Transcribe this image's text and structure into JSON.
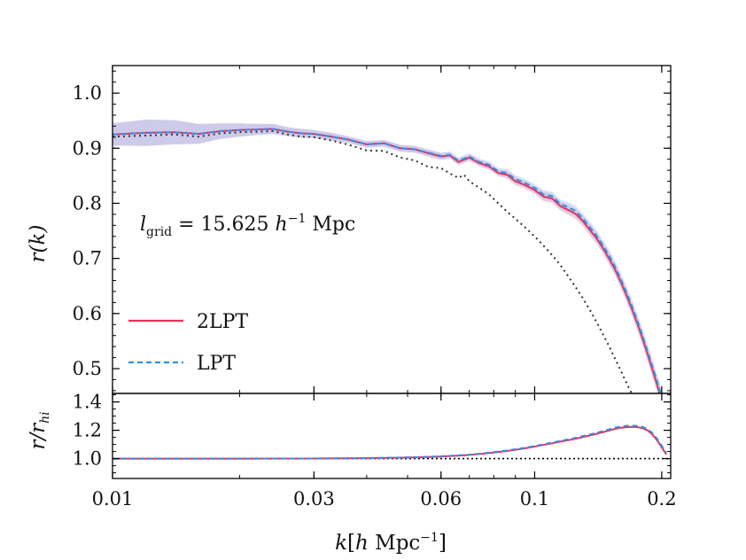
{
  "chart_data": {
    "type": "line",
    "xscale": "log",
    "xlim": [
      0.01,
      0.21
    ],
    "xlabel": "k[h Mpc⁻¹]",
    "xticks": [
      0.01,
      0.03,
      0.06,
      0.1,
      0.2
    ],
    "xtick_labels": [
      "0.01",
      "0.03",
      "0.06",
      "0.1",
      "0.2"
    ],
    "legend_position": "lower-left",
    "annotation": "l_grid = 15.625 h⁻¹ Mpc",
    "colors": {
      "twolpt": "#e8325a",
      "lpt": "#2f8fe8",
      "reference": "#333333",
      "band_twolpt": "#d9a6c8",
      "band_lpt": "#b7c6f0"
    },
    "top_panel": {
      "ylabel": "r(k)",
      "ylim": [
        0.455,
        1.05
      ],
      "yticks": [
        0.5,
        0.6,
        0.7,
        0.8,
        0.9,
        1.0
      ],
      "ytick_labels": [
        "0.5",
        "0.6",
        "0.7",
        "0.8",
        "0.9",
        "1.0"
      ],
      "series": [
        {
          "name": "2LPT",
          "style": "solid",
          "x": [
            0.01,
            0.012,
            0.014,
            0.016,
            0.018,
            0.02,
            0.022,
            0.024,
            0.026,
            0.028,
            0.03,
            0.033,
            0.036,
            0.04,
            0.044,
            0.048,
            0.052,
            0.056,
            0.06,
            0.063,
            0.066,
            0.07,
            0.074,
            0.078,
            0.082,
            0.086,
            0.09,
            0.095,
            0.1,
            0.105,
            0.11,
            0.115,
            0.12,
            0.125,
            0.13,
            0.135,
            0.14,
            0.145,
            0.15,
            0.155,
            0.16,
            0.165,
            0.17,
            0.175,
            0.18,
            0.185,
            0.19,
            0.195,
            0.2,
            0.205
          ],
          "y": [
            0.925,
            0.928,
            0.929,
            0.926,
            0.931,
            0.933,
            0.934,
            0.935,
            0.93,
            0.927,
            0.926,
            0.921,
            0.916,
            0.907,
            0.909,
            0.9,
            0.898,
            0.891,
            0.885,
            0.887,
            0.875,
            0.883,
            0.873,
            0.867,
            0.855,
            0.852,
            0.84,
            0.833,
            0.824,
            0.812,
            0.809,
            0.795,
            0.788,
            0.781,
            0.768,
            0.752,
            0.737,
            0.719,
            0.7,
            0.68,
            0.657,
            0.633,
            0.608,
            0.582,
            0.555,
            0.527,
            0.499,
            0.471,
            0.443,
            0.418
          ],
          "band": [
            0.02,
            0.024,
            0.022,
            0.018,
            0.014,
            0.012,
            0.01,
            0.009,
            0.008,
            0.008,
            0.007,
            0.007,
            0.006,
            0.006,
            0.006,
            0.006,
            0.006,
            0.006,
            0.006,
            0.006,
            0.006,
            0.006,
            0.006,
            0.006,
            0.006,
            0.007,
            0.007,
            0.007,
            0.007,
            0.008,
            0.008,
            0.008,
            0.009,
            0.009,
            0.009,
            0.01,
            0.01,
            0.01,
            0.011,
            0.011,
            0.011,
            0.012,
            0.012,
            0.012,
            0.013,
            0.013,
            0.013,
            0.014,
            0.014,
            0.014
          ]
        },
        {
          "name": "LPT",
          "style": "dashed",
          "x": [
            0.01,
            0.012,
            0.014,
            0.016,
            0.018,
            0.02,
            0.022,
            0.024,
            0.026,
            0.028,
            0.03,
            0.033,
            0.036,
            0.04,
            0.044,
            0.048,
            0.052,
            0.056,
            0.06,
            0.063,
            0.066,
            0.07,
            0.074,
            0.078,
            0.082,
            0.086,
            0.09,
            0.095,
            0.1,
            0.105,
            0.11,
            0.115,
            0.12,
            0.125,
            0.13,
            0.135,
            0.14,
            0.145,
            0.15,
            0.155,
            0.16,
            0.165,
            0.17,
            0.175,
            0.18,
            0.185,
            0.19,
            0.195,
            0.2,
            0.205
          ],
          "y": [
            0.925,
            0.928,
            0.929,
            0.926,
            0.931,
            0.933,
            0.934,
            0.935,
            0.93,
            0.927,
            0.926,
            0.921,
            0.916,
            0.907,
            0.909,
            0.9,
            0.898,
            0.892,
            0.886,
            0.888,
            0.877,
            0.885,
            0.875,
            0.87,
            0.858,
            0.855,
            0.844,
            0.837,
            0.828,
            0.816,
            0.813,
            0.799,
            0.793,
            0.786,
            0.773,
            0.757,
            0.742,
            0.724,
            0.705,
            0.685,
            0.662,
            0.638,
            0.613,
            0.587,
            0.56,
            0.532,
            0.504,
            0.476,
            0.448,
            0.422
          ],
          "band": [
            0.02,
            0.024,
            0.022,
            0.018,
            0.014,
            0.012,
            0.01,
            0.009,
            0.008,
            0.008,
            0.007,
            0.007,
            0.006,
            0.006,
            0.006,
            0.006,
            0.006,
            0.006,
            0.006,
            0.006,
            0.006,
            0.006,
            0.006,
            0.006,
            0.006,
            0.007,
            0.007,
            0.007,
            0.007,
            0.008,
            0.008,
            0.008,
            0.009,
            0.009,
            0.009,
            0.01,
            0.01,
            0.01,
            0.011,
            0.011,
            0.011,
            0.012,
            0.012,
            0.012,
            0.013,
            0.013,
            0.013,
            0.014,
            0.014,
            0.014
          ]
        },
        {
          "style": "dotted",
          "x": [
            0.01,
            0.012,
            0.014,
            0.016,
            0.018,
            0.02,
            0.022,
            0.024,
            0.026,
            0.028,
            0.03,
            0.033,
            0.036,
            0.04,
            0.044,
            0.048,
            0.052,
            0.056,
            0.06,
            0.063,
            0.066,
            0.068,
            0.07,
            0.074,
            0.078,
            0.082,
            0.086,
            0.09,
            0.095,
            0.1,
            0.105,
            0.11,
            0.115,
            0.12,
            0.125,
            0.13,
            0.135,
            0.14,
            0.145,
            0.15,
            0.155,
            0.16,
            0.165,
            0.17,
            0.175,
            0.18,
            0.185
          ],
          "y": [
            0.921,
            0.923,
            0.925,
            0.921,
            0.927,
            0.929,
            0.93,
            0.931,
            0.925,
            0.921,
            0.92,
            0.914,
            0.907,
            0.896,
            0.895,
            0.883,
            0.878,
            0.866,
            0.864,
            0.854,
            0.846,
            0.852,
            0.84,
            0.828,
            0.816,
            0.8,
            0.785,
            0.772,
            0.756,
            0.74,
            0.723,
            0.706,
            0.688,
            0.668,
            0.648,
            0.628,
            0.607,
            0.585,
            0.563,
            0.541,
            0.518,
            0.496,
            0.474,
            0.454,
            0.436,
            0.418,
            0.4
          ]
        }
      ]
    },
    "bottom_panel": {
      "ylabel": "r/r_hi",
      "ylim": [
        0.86,
        1.46
      ],
      "yticks": [
        1.0,
        1.2,
        1.4
      ],
      "ytick_labels": [
        "1.0",
        "1.2",
        "1.4"
      ],
      "reference_y": 1.0,
      "series": [
        {
          "name": "2LPT",
          "style": "solid",
          "x": [
            0.01,
            0.02,
            0.03,
            0.035,
            0.04,
            0.045,
            0.05,
            0.055,
            0.06,
            0.065,
            0.07,
            0.075,
            0.08,
            0.085,
            0.09,
            0.095,
            0.1,
            0.105,
            0.11,
            0.115,
            0.12,
            0.125,
            0.13,
            0.135,
            0.14,
            0.145,
            0.15,
            0.155,
            0.16,
            0.165,
            0.17,
            0.175,
            0.18,
            0.185,
            0.19,
            0.195,
            0.2,
            0.205
          ],
          "y": [
            1.0,
            1.0,
            1.001,
            1.002,
            1.003,
            1.005,
            1.008,
            1.011,
            1.015,
            1.02,
            1.026,
            1.034,
            1.043,
            1.052,
            1.062,
            1.073,
            1.085,
            1.097,
            1.108,
            1.12,
            1.13,
            1.14,
            1.152,
            1.163,
            1.175,
            1.186,
            1.198,
            1.21,
            1.218,
            1.222,
            1.224,
            1.222,
            1.215,
            1.2,
            1.17,
            1.13,
            1.08,
            1.03
          ]
        },
        {
          "name": "LPT",
          "style": "dashed",
          "x": [
            0.01,
            0.02,
            0.03,
            0.035,
            0.04,
            0.045,
            0.05,
            0.055,
            0.06,
            0.065,
            0.07,
            0.075,
            0.08,
            0.085,
            0.09,
            0.095,
            0.1,
            0.105,
            0.11,
            0.115,
            0.12,
            0.125,
            0.13,
            0.135,
            0.14,
            0.145,
            0.15,
            0.155,
            0.16,
            0.165,
            0.17,
            0.175,
            0.18,
            0.185,
            0.19,
            0.195,
            0.2,
            0.205
          ],
          "y": [
            1.0,
            1.0,
            1.001,
            1.002,
            1.004,
            1.006,
            1.009,
            1.012,
            1.017,
            1.022,
            1.028,
            1.036,
            1.046,
            1.055,
            1.066,
            1.077,
            1.089,
            1.101,
            1.113,
            1.125,
            1.136,
            1.147,
            1.159,
            1.17,
            1.182,
            1.194,
            1.206,
            1.218,
            1.226,
            1.231,
            1.233,
            1.231,
            1.224,
            1.209,
            1.18,
            1.14,
            1.09,
            1.04
          ]
        }
      ]
    }
  }
}
